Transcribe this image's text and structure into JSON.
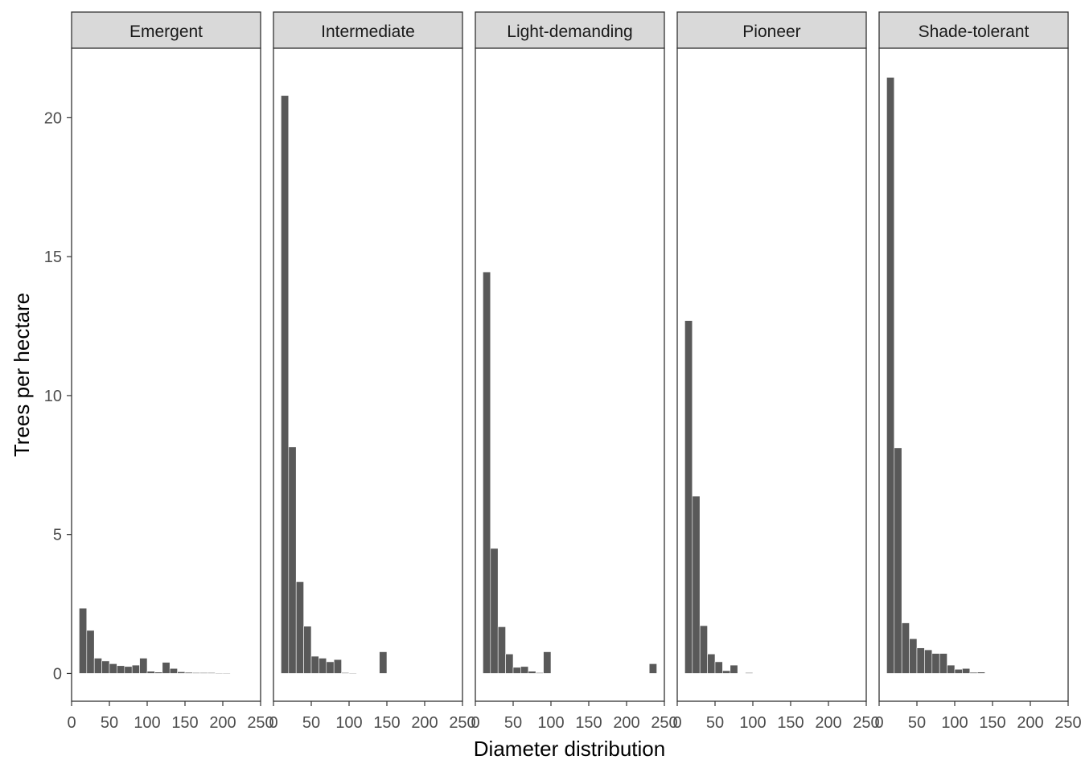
{
  "chart_data": {
    "type": "bar",
    "layout": "facet-row",
    "xlabel": "Diameter distribution",
    "ylabel": "Trees per hectare",
    "xlim": [
      0,
      250
    ],
    "ylim": [
      -1,
      22.5
    ],
    "xticks": [
      0,
      50,
      100,
      150,
      200,
      250
    ],
    "yticks": [
      0,
      5,
      10,
      15,
      20
    ],
    "bin_width": 10,
    "grid": false,
    "colors": {
      "bar": "#595959",
      "strip_fill": "#d9d9d9",
      "panel_border": "#333333",
      "tick": "#333333"
    },
    "facets": [
      {
        "name": "Emergent",
        "bins": [
          15,
          25,
          35,
          45,
          55,
          65,
          75,
          85,
          95,
          105,
          115,
          125,
          135,
          145,
          155,
          165,
          175,
          185,
          195,
          205
        ],
        "values": [
          2.35,
          1.55,
          0.55,
          0.45,
          0.35,
          0.28,
          0.25,
          0.3,
          0.55,
          0.08,
          0.05,
          0.4,
          0.18,
          0.06,
          0.04,
          0.03,
          0.03,
          0.03,
          0.02,
          0.02
        ]
      },
      {
        "name": "Intermediate",
        "bins": [
          15,
          25,
          35,
          45,
          55,
          65,
          75,
          85,
          95,
          105,
          145
        ],
        "values": [
          20.8,
          8.15,
          3.3,
          1.7,
          0.62,
          0.55,
          0.42,
          0.5,
          0.03,
          0.02,
          0.78
        ]
      },
      {
        "name": "Light-demanding",
        "bins": [
          15,
          25,
          35,
          45,
          55,
          65,
          75,
          85,
          95,
          235
        ],
        "values": [
          14.45,
          4.5,
          1.68,
          0.7,
          0.22,
          0.25,
          0.08,
          0.03,
          0.78,
          0.35
        ]
      },
      {
        "name": "Pioneer",
        "bins": [
          15,
          25,
          35,
          45,
          55,
          65,
          75,
          95
        ],
        "values": [
          12.7,
          6.38,
          1.72,
          0.7,
          0.42,
          0.1,
          0.3,
          0.03
        ]
      },
      {
        "name": "Shade-tolerant",
        "bins": [
          15,
          25,
          35,
          45,
          55,
          65,
          75,
          85,
          95,
          105,
          115,
          125,
          135
        ],
        "values": [
          21.45,
          8.12,
          1.82,
          1.25,
          0.92,
          0.85,
          0.72,
          0.72,
          0.3,
          0.15,
          0.18,
          0.04,
          0.05
        ]
      }
    ]
  }
}
